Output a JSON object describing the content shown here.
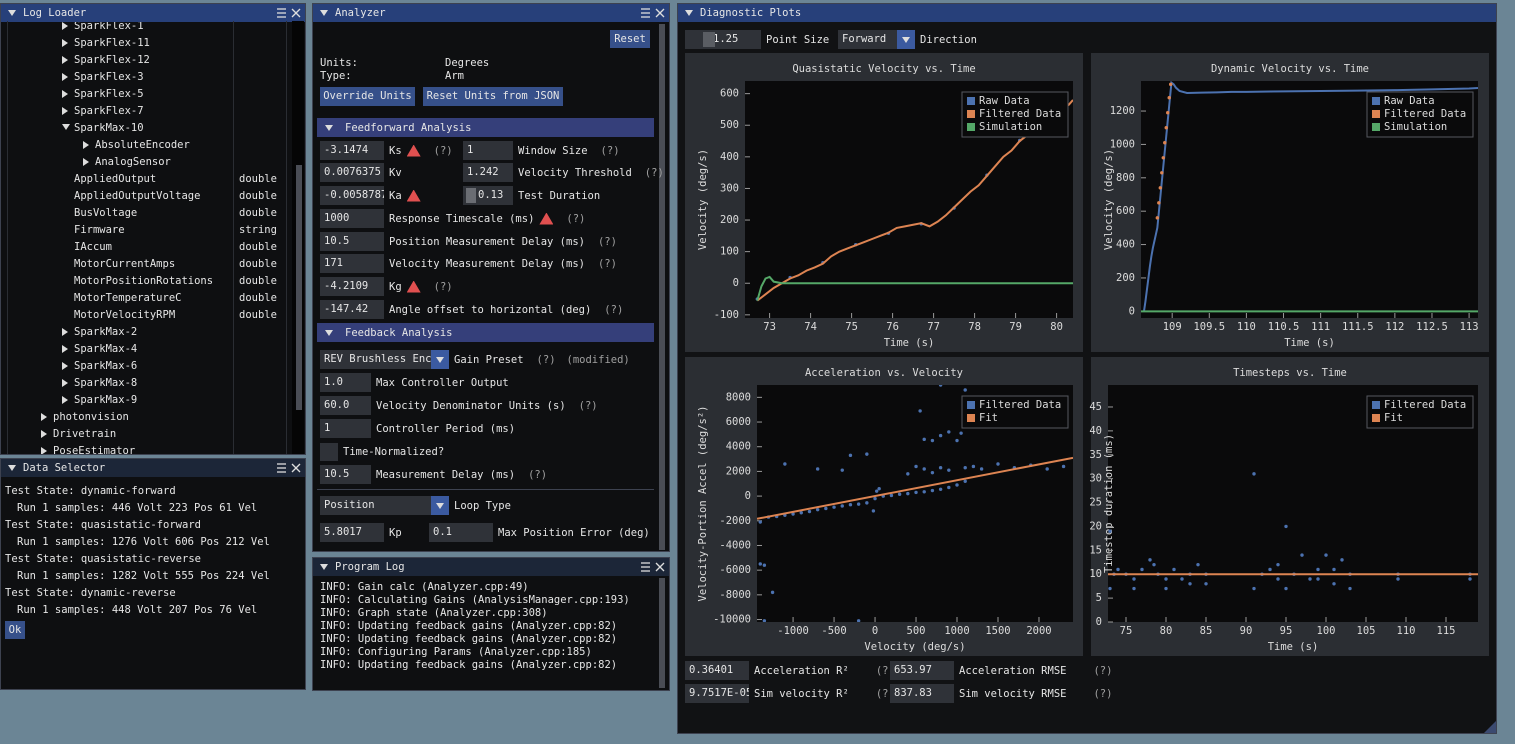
{
  "log_loader": {
    "title": "Log Loader",
    "rows": [
      {
        "label": "SparkFlex-1"
      },
      {
        "label": "SparkFlex-11"
      },
      {
        "label": "SparkFlex-12"
      },
      {
        "label": "SparkFlex-3"
      },
      {
        "label": "SparkFlex-5"
      },
      {
        "label": "SparkFlex-7"
      },
      {
        "label": "SparkMax-10"
      },
      {
        "label": "AbsoluteEncoder"
      },
      {
        "label": "AnalogSensor"
      },
      {
        "label": "AppliedOutput",
        "type": "double"
      },
      {
        "label": "AppliedOutputVoltage",
        "type": "double"
      },
      {
        "label": "BusVoltage",
        "type": "double"
      },
      {
        "label": "Firmware",
        "type": "string"
      },
      {
        "label": "IAccum",
        "type": "double"
      },
      {
        "label": "MotorCurrentAmps",
        "type": "double"
      },
      {
        "label": "MotorPositionRotations",
        "type": "double"
      },
      {
        "label": "MotorTemperatureC",
        "type": "double"
      },
      {
        "label": "MotorVelocityRPM",
        "type": "double"
      },
      {
        "label": "SparkMax-2"
      },
      {
        "label": "SparkMax-4"
      },
      {
        "label": "SparkMax-6"
      },
      {
        "label": "SparkMax-8"
      },
      {
        "label": "SparkMax-9"
      },
      {
        "label": "photonvision"
      },
      {
        "label": "Drivetrain"
      },
      {
        "label": "PoseEstimator"
      }
    ]
  },
  "data_selector": {
    "title": "Data Selector",
    "lines": [
      "Test State: dynamic-forward",
      "Run 1 samples: 446 Volt 223 Pos 61 Vel",
      "Test State: quasistatic-forward",
      "Run 1 samples: 1276 Volt 606 Pos 212 Vel",
      "Test State: quasistatic-reverse",
      "Run 1 samples: 1282 Volt 555 Pos 224 Vel",
      "Test State: dynamic-reverse",
      "Run 1 samples: 448 Volt 207 Pos 76 Vel"
    ],
    "ok": "Ok"
  },
  "analyzer": {
    "title": "Analyzer",
    "reset": "Reset",
    "units_label": "Units:",
    "units": "Degrees",
    "type_label": "Type:",
    "type": "Arm",
    "override_units": "Override Units",
    "reset_units": "Reset Units from JSON",
    "feedforward": {
      "header": "Feedforward Analysis",
      "fields": [
        {
          "value": "-3.1474",
          "label": "Ks",
          "warning": true,
          "help": "(?)"
        },
        {
          "value": "1",
          "label": "Window Size",
          "help": "(?)"
        },
        {
          "value": "0.0076375",
          "label": "Kv"
        },
        {
          "value": "1.242",
          "label": "Velocity Threshold",
          "help": "(?)"
        },
        {
          "value": "-0.0058787",
          "label": "Ka",
          "warning": true
        },
        {
          "value": "0.13",
          "label": "Test Duration"
        },
        {
          "value": "1000",
          "label": "Response Timescale (ms)",
          "warning": true,
          "help": "(?)"
        },
        {
          "value": "10.5",
          "label": "Position Measurement Delay (ms)",
          "help": "(?)"
        },
        {
          "value": "171",
          "label": "Velocity Measurement Delay (ms)",
          "help": "(?)"
        },
        {
          "value": "-4.2109",
          "label": "Kg",
          "warning": true,
          "help": "(?)"
        },
        {
          "value": "-147.42",
          "label": "Angle offset to horizontal (deg)",
          "help": "(?)"
        }
      ]
    },
    "feedback": {
      "header": "Feedback Analysis",
      "fields": [
        {
          "value": "REV Brushless Enc",
          "label": "Gain Preset",
          "help": "(?)",
          "note": "(modified)"
        },
        {
          "value": "1.0",
          "label": "Max Controller Output"
        },
        {
          "value": "60.0",
          "label": "Velocity Denominator Units (s)",
          "help": "(?)"
        },
        {
          "value": "1",
          "label": "Controller Period (ms)"
        },
        {
          "label": "Time-Normalized?",
          "checked": false
        },
        {
          "value": "10.5",
          "label": "Measurement Delay (ms)",
          "help": "(?)"
        },
        {
          "value": "Position",
          "label": "Loop Type"
        },
        {
          "value": "5.8017",
          "label": "Kp"
        },
        {
          "value": "0.1",
          "label": "Max Position Error (deg)"
        }
      ]
    }
  },
  "program_log": {
    "title": "Program Log",
    "lines": [
      "INFO: Gain calc (Analyzer.cpp:49)",
      "INFO: Calculating Gains (AnalysisManager.cpp:193)",
      "INFO: Graph state (Analyzer.cpp:308)",
      "INFO: Updating feedback gains (Analyzer.cpp:82)",
      "INFO: Updating feedback gains (Analyzer.cpp:82)",
      "INFO: Configuring Params (Analyzer.cpp:185)",
      "INFO: Updating feedback gains (Analyzer.cpp:82)"
    ]
  },
  "diagnostic_plots": {
    "title": "Diagnostic Plots",
    "controls": [
      {
        "value": "1.25",
        "label": "Point Size"
      },
      {
        "value": "Forward",
        "label": "Direction"
      }
    ],
    "stats": [
      {
        "value": "0.36401",
        "label": "Acceleration R²",
        "help": "(?)"
      },
      {
        "value": "653.97",
        "label": "Acceleration RMSE",
        "help": "(?)"
      },
      {
        "value": "9.7517E-05",
        "label": "Sim velocity R²",
        "help": "(?)"
      },
      {
        "value": "837.83",
        "label": "Sim velocity RMSE",
        "help": "(?)"
      }
    ]
  },
  "chart_data": [
    {
      "type": "scatter",
      "title": "Quasistatic Velocity vs. Time",
      "x_label": "Time (s)",
      "y_label": "Velocity (deg/s)",
      "legend": "upper right",
      "xlim": [
        72.4,
        80.4
      ],
      "xticks": [
        73,
        74,
        75,
        76,
        77,
        78,
        79,
        80
      ],
      "ylim": [
        -110,
        640
      ],
      "yticks": [
        -100,
        0,
        100,
        200,
        300,
        400,
        500,
        600
      ],
      "series": [
        {
          "name": "Raw Data",
          "color": "#4c72b0",
          "mode": "points",
          "x": [
            72.7,
            73.5,
            74.3,
            75.1,
            75.9,
            76.7,
            77.5,
            78.3,
            79.1,
            79.9
          ],
          "values": [
            -50,
            18,
            65,
            122,
            158,
            188,
            238,
            342,
            452,
            528
          ]
        },
        {
          "name": "Filtered Data",
          "color": "#dd8452",
          "mode": "line",
          "x": [
            72.7,
            72.9,
            73.1,
            73.3,
            73.5,
            73.7,
            73.9,
            74.1,
            74.3,
            74.5,
            74.7,
            74.9,
            75.1,
            75.3,
            75.5,
            75.7,
            75.9,
            76.1,
            76.3,
            76.5,
            76.7,
            76.9,
            77.1,
            77.3,
            77.5,
            77.7,
            77.9,
            78.1,
            78.3,
            78.5,
            78.7,
            78.9,
            79.1,
            79.3,
            79.5,
            79.7,
            79.9,
            80.1,
            80.3,
            80.4
          ],
          "values": [
            -55,
            -35,
            -15,
            0,
            15,
            25,
            40,
            50,
            62,
            85,
            100,
            110,
            120,
            130,
            140,
            150,
            160,
            175,
            180,
            185,
            190,
            180,
            195,
            215,
            240,
            265,
            290,
            310,
            340,
            370,
            400,
            420,
            450,
            470,
            490,
            510,
            530,
            545,
            565,
            580
          ]
        },
        {
          "name": "Simulation",
          "color": "#55a868",
          "mode": "line",
          "x": [
            72.7,
            72.8,
            72.9,
            73.0,
            73.1,
            73.3,
            74,
            75,
            76,
            77,
            78,
            79,
            80,
            80.4
          ],
          "values": [
            -55,
            -10,
            15,
            20,
            5,
            0,
            0,
            0,
            0,
            0,
            0,
            0,
            0,
            0
          ]
        }
      ]
    },
    {
      "type": "scatter",
      "title": "Dynamic Velocity vs. Time",
      "x_label": "Time (s)",
      "y_label": "Velocity (deg/s)",
      "legend": "upper right",
      "xlim": [
        108.58,
        113.12
      ],
      "xticks": [
        109,
        109.5,
        110,
        110.5,
        111,
        111.5,
        112,
        112.5,
        113
      ],
      "ylim": [
        -40,
        1380
      ],
      "yticks": [
        0,
        200,
        400,
        600,
        800,
        1000,
        1200
      ],
      "series": [
        {
          "name": "Raw Data",
          "color": "#4c72b0",
          "mode": "line",
          "x": [
            108.62,
            108.64,
            108.66,
            108.68,
            108.7,
            108.72,
            108.74,
            108.76,
            108.78,
            108.8,
            108.99,
            109.02,
            109.05,
            109.1,
            109.2,
            109.4,
            109.6,
            109.8,
            110,
            110.5,
            111,
            111.5,
            112,
            112.5,
            113,
            113.12
          ],
          "values": [
            0,
            60,
            130,
            200,
            270,
            330,
            380,
            420,
            460,
            500,
            1370,
            1360,
            1340,
            1320,
            1308,
            1310,
            1312,
            1315,
            1315,
            1318,
            1320,
            1322,
            1325,
            1330,
            1335,
            1338
          ]
        },
        {
          "name": "Filtered Data",
          "color": "#dd8452",
          "mode": "points",
          "x": [
            108.8,
            108.82,
            108.84,
            108.86,
            108.88,
            108.9,
            108.92,
            108.94,
            108.96,
            108.98
          ],
          "values": [
            560,
            650,
            740,
            830,
            920,
            1010,
            1100,
            1190,
            1280,
            1360
          ]
        },
        {
          "name": "Simulation",
          "color": "#55a868",
          "mode": "line",
          "x": [
            108.58,
            113.12
          ],
          "values": [
            0,
            0
          ]
        }
      ]
    },
    {
      "type": "scatter",
      "title": "Acceleration vs. Velocity",
      "x_label": "Velocity (deg/s)",
      "y_label": "Velocity-Portion Accel (deg/s²)",
      "legend": "upper right",
      "xlim": [
        -1440,
        2415
      ],
      "xticks": [
        -1000,
        -500,
        0,
        500,
        1000,
        1500,
        2000
      ],
      "ylim": [
        -10200,
        9000
      ],
      "yticks": [
        -10000,
        -8000,
        -6000,
        -4000,
        -2000,
        0,
        2000,
        4000,
        6000,
        8000
      ],
      "series": [
        {
          "name": "Filtered Data",
          "color": "#4c72b0",
          "mode": "points",
          "x": [
            -1300,
            -1200,
            -1100,
            -1000,
            -900,
            -800,
            -700,
            -600,
            -500,
            -400,
            -300,
            -200,
            -100,
            -20,
            0,
            20,
            50,
            100,
            200,
            300,
            400,
            500,
            600,
            700,
            800,
            900,
            1000,
            1100,
            -1400,
            -1350,
            -1250,
            -1100,
            -700,
            -400,
            -300,
            -100,
            -1400,
            400,
            500,
            600,
            700,
            800,
            900,
            600,
            700,
            800,
            900,
            1000,
            1050,
            550,
            1100,
            1200,
            1300,
            1500,
            1700,
            1900,
            2100,
            2300,
            800,
            1100,
            -1350,
            -200
          ],
          "values": [
            -1700,
            -1650,
            -1550,
            -1450,
            -1350,
            -1250,
            -1100,
            -1000,
            -900,
            -800,
            -700,
            -650,
            -550,
            -1200,
            -200,
            400,
            600,
            0,
            50,
            150,
            200,
            300,
            350,
            450,
            550,
            700,
            900,
            1200,
            -5500,
            -5600,
            -7800,
            2600,
            2200,
            2100,
            3300,
            3400,
            -2100,
            1800,
            2400,
            2200,
            1900,
            2300,
            2100,
            4600,
            4500,
            4900,
            5200,
            4500,
            5100,
            6900,
            2300,
            2400,
            2200,
            2600,
            2300,
            2500,
            2200,
            2400,
            9000,
            8600,
            -10100,
            -10100
          ]
        },
        {
          "name": "Fit",
          "color": "#dd8452",
          "mode": "line",
          "x": [
            -1440,
            2415
          ],
          "values": [
            -1840,
            3100
          ]
        }
      ]
    },
    {
      "type": "scatter",
      "title": "Timesteps vs. Time",
      "x_label": "Time (s)",
      "y_label": "Timestep duration (ms)",
      "legend": "upper right",
      "xlim": [
        72.75,
        119
      ],
      "xticks": [
        75,
        80,
        85,
        90,
        95,
        100,
        105,
        110,
        115
      ],
      "ylim": [
        0,
        49.6
      ],
      "yticks": [
        0,
        5,
        10,
        15,
        20,
        25,
        30,
        35,
        40,
        45
      ],
      "series": [
        {
          "name": "Filtered Data",
          "color": "#4c72b0",
          "mode": "points",
          "x": [
            73,
            73,
            73.5,
            74,
            75,
            76,
            77,
            78,
            78.5,
            79,
            80,
            81,
            82,
            83,
            84,
            85,
            85,
            91,
            91,
            92,
            93,
            94,
            95,
            95,
            96,
            97,
            98,
            99,
            100,
            101,
            102,
            103,
            103,
            109,
            109,
            118,
            118,
            76,
            80,
            83,
            94,
            99,
            101
          ],
          "values": [
            19,
            7,
            10,
            11,
            10,
            9,
            11,
            13,
            12,
            10,
            7,
            11,
            9,
            10,
            12,
            8,
            10,
            31,
            7,
            10,
            11,
            9,
            20,
            7,
            10,
            14,
            9,
            11,
            14,
            8,
            13,
            10,
            7,
            10,
            9,
            10,
            9,
            7,
            9,
            8,
            12,
            9,
            11
          ]
        },
        {
          "name": "Fit",
          "color": "#dd8452",
          "mode": "line",
          "x": [
            72.75,
            119
          ],
          "values": [
            10,
            10
          ]
        }
      ]
    }
  ]
}
